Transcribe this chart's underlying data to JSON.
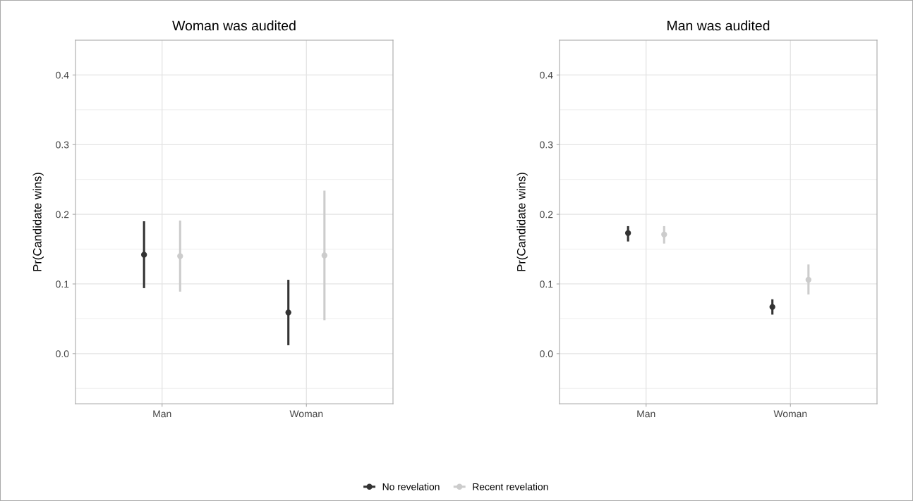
{
  "chart_data": [
    {
      "type": "scatter",
      "title": "Woman was audited",
      "ylabel": "Pr(Candidate wins)",
      "categories": [
        "Man",
        "Woman"
      ],
      "ylim": [
        -0.072,
        0.45
      ],
      "yticks": [
        {
          "value": 0,
          "label": "0.0"
        },
        {
          "value": 0.1,
          "label": "0.1"
        },
        {
          "value": 0.2,
          "label": "0.2"
        },
        {
          "value": 0.3,
          "label": "0.3"
        },
        {
          "value": 0.4,
          "label": "0.4"
        }
      ],
      "grid": true,
      "marker": "circle",
      "legend": "bottom",
      "series": [
        {
          "name": "No revelation",
          "color": "#333333",
          "values": [
            0.142,
            0.059
          ],
          "errors": [
            [
              0.094,
              0.19
            ],
            [
              0.012,
              0.106
            ]
          ]
        },
        {
          "name": "Recent revelation",
          "color": "#cccccc",
          "values": [
            0.14,
            0.141
          ],
          "errors": [
            [
              0.089,
              0.191
            ],
            [
              0.048,
              0.234
            ]
          ]
        }
      ]
    },
    {
      "type": "scatter",
      "title": "Man was audited",
      "ylabel": "Pr(Candidate wins)",
      "categories": [
        "Man",
        "Woman"
      ],
      "ylim": [
        -0.072,
        0.45
      ],
      "yticks": [
        {
          "value": 0,
          "label": "0.0"
        },
        {
          "value": 0.1,
          "label": "0.1"
        },
        {
          "value": 0.2,
          "label": "0.2"
        },
        {
          "value": 0.3,
          "label": "0.3"
        },
        {
          "value": 0.4,
          "label": "0.4"
        }
      ],
      "grid": true,
      "marker": "circle",
      "series": [
        {
          "color": "#333333",
          "values": [
            0.173,
            0.067
          ],
          "errors": [
            [
              0.161,
              0.183
            ],
            [
              0.056,
              0.078
            ]
          ]
        },
        {
          "color": "#cccccc",
          "values": [
            0.171,
            0.106
          ],
          "errors": [
            [
              0.158,
              0.183
            ],
            [
              0.085,
              0.128
            ]
          ]
        }
      ]
    }
  ]
}
